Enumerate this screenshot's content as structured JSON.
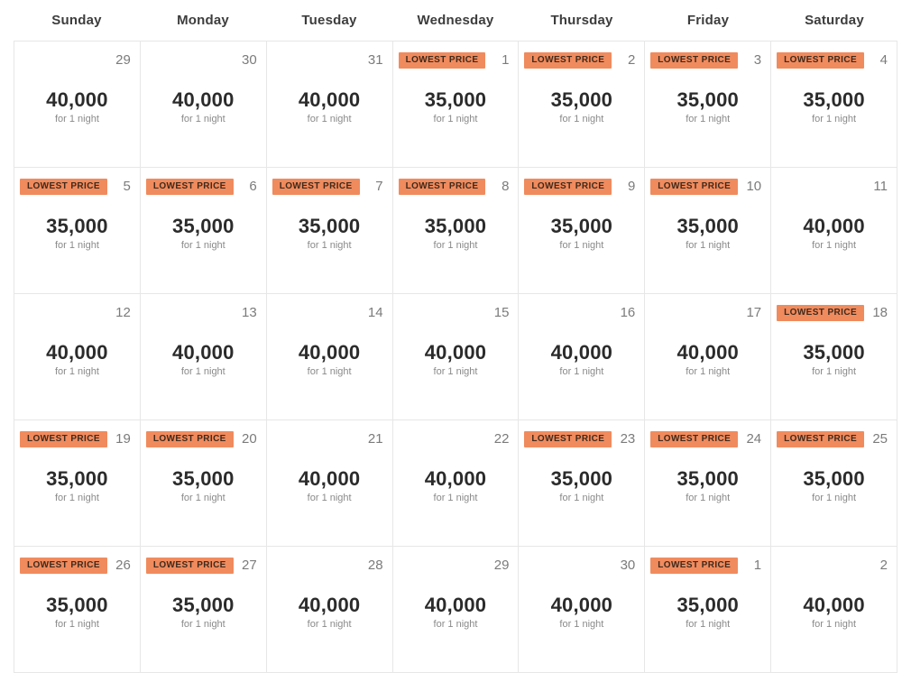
{
  "labels": {
    "badge": "LOWEST PRICE",
    "unit": "for 1 night"
  },
  "colors": {
    "badge_bg": "#f08b5e",
    "badge_text": "#3f2a1c",
    "grid_line": "#e7e7e7"
  },
  "weekdays": [
    "Sunday",
    "Monday",
    "Tuesday",
    "Wednesday",
    "Thursday",
    "Friday",
    "Saturday"
  ],
  "weeks": [
    [
      {
        "date": "29",
        "price": "40,000",
        "lowest": false
      },
      {
        "date": "30",
        "price": "40,000",
        "lowest": false
      },
      {
        "date": "31",
        "price": "40,000",
        "lowest": false
      },
      {
        "date": "1",
        "price": "35,000",
        "lowest": true
      },
      {
        "date": "2",
        "price": "35,000",
        "lowest": true
      },
      {
        "date": "3",
        "price": "35,000",
        "lowest": true
      },
      {
        "date": "4",
        "price": "35,000",
        "lowest": true
      }
    ],
    [
      {
        "date": "5",
        "price": "35,000",
        "lowest": true
      },
      {
        "date": "6",
        "price": "35,000",
        "lowest": true
      },
      {
        "date": "7",
        "price": "35,000",
        "lowest": true
      },
      {
        "date": "8",
        "price": "35,000",
        "lowest": true
      },
      {
        "date": "9",
        "price": "35,000",
        "lowest": true
      },
      {
        "date": "10",
        "price": "35,000",
        "lowest": true
      },
      {
        "date": "11",
        "price": "40,000",
        "lowest": false
      }
    ],
    [
      {
        "date": "12",
        "price": "40,000",
        "lowest": false
      },
      {
        "date": "13",
        "price": "40,000",
        "lowest": false
      },
      {
        "date": "14",
        "price": "40,000",
        "lowest": false
      },
      {
        "date": "15",
        "price": "40,000",
        "lowest": false
      },
      {
        "date": "16",
        "price": "40,000",
        "lowest": false
      },
      {
        "date": "17",
        "price": "40,000",
        "lowest": false
      },
      {
        "date": "18",
        "price": "35,000",
        "lowest": true
      }
    ],
    [
      {
        "date": "19",
        "price": "35,000",
        "lowest": true
      },
      {
        "date": "20",
        "price": "35,000",
        "lowest": true
      },
      {
        "date": "21",
        "price": "40,000",
        "lowest": false
      },
      {
        "date": "22",
        "price": "40,000",
        "lowest": false
      },
      {
        "date": "23",
        "price": "35,000",
        "lowest": true
      },
      {
        "date": "24",
        "price": "35,000",
        "lowest": true
      },
      {
        "date": "25",
        "price": "35,000",
        "lowest": true
      }
    ],
    [
      {
        "date": "26",
        "price": "35,000",
        "lowest": true
      },
      {
        "date": "27",
        "price": "35,000",
        "lowest": true
      },
      {
        "date": "28",
        "price": "40,000",
        "lowest": false
      },
      {
        "date": "29",
        "price": "40,000",
        "lowest": false
      },
      {
        "date": "30",
        "price": "40,000",
        "lowest": false
      },
      {
        "date": "1",
        "price": "35,000",
        "lowest": true
      },
      {
        "date": "2",
        "price": "40,000",
        "lowest": false
      }
    ]
  ]
}
